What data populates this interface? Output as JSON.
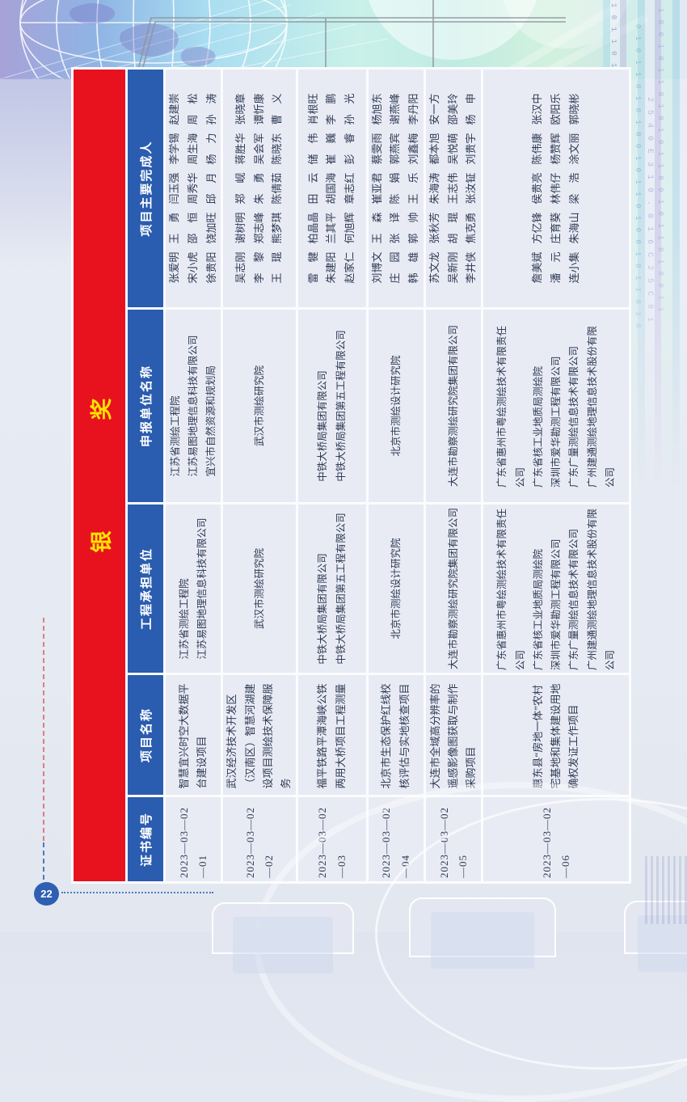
{
  "page_number": "22",
  "award": {
    "title": "银 奖"
  },
  "colors": {
    "award_red": "#e8121f",
    "header_blue": "#2a5caf",
    "title_yellow": "#ffe400",
    "cell_bg": "#e9ebf4"
  },
  "table": {
    "headers": [
      "证书编号",
      "项目名称",
      "工程承担单位",
      "申报单位名称",
      "项目主要完成人"
    ],
    "rows": [
      {
        "cert_no": "2023—03—02—01",
        "project_name": "智慧宜兴时空大数据平台建设项目",
        "contractors": [
          "江苏省测绘工程院",
          "江苏易图地理信息科技有限公司"
        ],
        "applicants": [
          "江苏省测绘工程院",
          "江苏易图地理信息科技有限公司",
          "宜兴市自然资源和规划局"
        ],
        "completers": [
          [
            "张爱明",
            "王　勇",
            "闫玉强",
            "李学锡",
            "赵建崇"
          ],
          [
            "宋小虎",
            "邵　恒",
            "周秀华",
            "周生海",
            "周　松"
          ],
          [
            "徐贵阳",
            "饶加旺",
            "邱　月",
            "杨　力",
            "孙　涛"
          ]
        ]
      },
      {
        "cert_no": "2023—03—02—02",
        "project_name": "武汉经济技术开发区（汉南区）智慧河湖建设项目测绘技术保障服务",
        "contractors": [
          "武汉市测绘研究院"
        ],
        "applicants": [
          "武汉市测绘研究院"
        ],
        "completers": [
          [
            "吴志刚",
            "谢树明",
            "郑　岘",
            "蒋胜华",
            "张晓章"
          ],
          [
            "李　黎",
            "郑志峰",
            "朱　勇",
            "吴会军",
            "谭忻康"
          ],
          [
            "王　琨",
            "熊梦琪",
            "陈倩茹",
            "陈晓东",
            "曹　义"
          ]
        ]
      },
      {
        "cert_no": "2023—03—02—03",
        "project_name": "福平铁路平潭海峡公铁两用大桥项目工程测量",
        "contractors": [
          "中铁大桥局集团有限公司",
          "中铁大桥局集团第五工程有限公司"
        ],
        "applicants": [
          "中铁大桥局集团有限公司",
          "中铁大桥局集团第五工程有限公司"
        ],
        "completers": [
          [
            "雷　犍",
            "柏晶晶",
            "田　云",
            "储　伟",
            "肖根旺"
          ],
          [
            "朱建阳",
            "兰其平",
            "胡国海",
            "崔　巍",
            "李　鹏"
          ],
          [
            "赵家仁",
            "何旭辉",
            "章志红",
            "彭　睿",
            "孙　光"
          ]
        ]
      },
      {
        "cert_no": "2023—03—02—04",
        "project_name": "北京市生态保护红线校核评估与实地核查项目",
        "contractors": [
          "北京市测绘设计研究院"
        ],
        "applicants": [
          "北京市测绘设计研究院"
        ],
        "completers": [
          [
            "刘博文",
            "王　森",
            "崔亚君",
            "蔡雯雨",
            "杨旭东"
          ],
          [
            "庄　园",
            "张　译",
            "陈　娟",
            "郭燕宾",
            "谢燕峰"
          ],
          [
            "韩　雄",
            "郭　帅",
            "王　乐",
            "刘鑫梅",
            "李丹阳"
          ]
        ]
      },
      {
        "cert_no": "2023—03—02—05",
        "project_name": "大连市全域高分辨率的遥感影像图获取与制作采购项目",
        "contractors": [
          "大连市勘察测绘研究院集团有限公司"
        ],
        "applicants": [
          "大连市勘察测绘研究院集团有限公司"
        ],
        "completers": [
          [
            "苏文龙",
            "张秋芳",
            "朱海涛",
            "都本旭",
            "安一方"
          ],
          [
            "吴新刚",
            "胡　琨",
            "王志伟",
            "吴悦萌",
            "邵美玲"
          ],
          [
            "李井侠",
            "焦克勇",
            "张汝钲",
            "刘贵宇",
            "杨　申"
          ]
        ]
      },
      {
        "cert_no": "2023—03—02—06",
        "project_name": "惠东县“房地一体”农村宅基地和集体建设用地确权发证工作项目",
        "contractors": [
          "广东省惠州市粤绘测绘技术有限责任公司",
          "广东省核工业地质局测绘院",
          "深圳市爱华勘测工程有限公司",
          "广东广量测绘信息技术有限公司",
          "广州建通测绘地理信息技术股份有限公司"
        ],
        "applicants": [
          "广东省惠州市粤绘测绘技术有限责任公司",
          "广东省核工业地质局测绘院",
          "深圳市爱华勘测工程有限公司",
          "广东广量测绘信息技术有限公司",
          "广州建通测绘地理信息技术股份有限公司"
        ],
        "completers": [
          [
            "詹美斌",
            "方亿锋",
            "侯贵亮",
            "陈伟康",
            "张汉中"
          ],
          [
            "潘　元",
            "庄育葵",
            "林伟仔",
            "杨赞辉",
            "欧阳乐"
          ],
          [
            "连小集",
            "朱海山",
            "梁　浩",
            "涂文丽",
            "郭晓彬"
          ]
        ]
      }
    ]
  },
  "decor": {
    "binary_strip": "1 0 1 1 0 1 0 0 1 0 1 1 0 1 0 1 1 0 1 0 0 1 0 1 1 0",
    "binary_strip2": "0 1 0 1 1 0 1 0 1 0 0 1 0 1 1 0 1 0 0 1 0 1 1 0 1 0",
    "binary_strip3": "1 0 0 1 0 1 1 0 1 0 1 0 1 1 0 0 1 0 1 1 0 1 0 0 1 1",
    "tech_numbers": "2 5 4 0 E 3 1 0 . 0 1 6 C 2 5 C 9 1"
  }
}
